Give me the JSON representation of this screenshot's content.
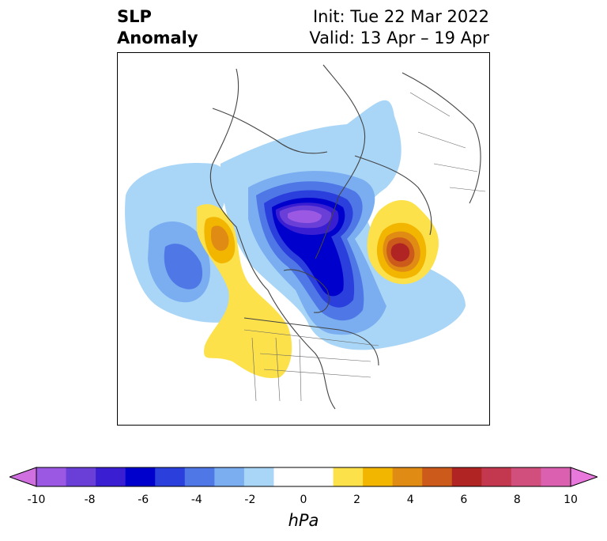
{
  "title": {
    "left_line1": "SLP",
    "left_line2": "Anomaly",
    "init": "Init: Tue 22 Mar 2022",
    "valid": "Valid: 13 Apr – 19 Apr"
  },
  "colorbar": {
    "unit": "hPa",
    "ticks": [
      "-10",
      "-8",
      "-6",
      "-4",
      "-2",
      "0",
      "2",
      "4",
      "6",
      "8",
      "10"
    ],
    "bins": [
      {
        "color": "#9b59e3"
      },
      {
        "color": "#6a3fd8"
      },
      {
        "color": "#3a1fd2"
      },
      {
        "color": "#0000cc"
      },
      {
        "color": "#2a3fdc"
      },
      {
        "color": "#4f78e6"
      },
      {
        "color": "#7aaef0"
      },
      {
        "color": "#a9d6f7"
      },
      {
        "color": "#ffffff"
      },
      {
        "color": "#ffffff"
      },
      {
        "color": "#fde14a"
      },
      {
        "color": "#f2b500"
      },
      {
        "color": "#e08b14"
      },
      {
        "color": "#cc5a1a"
      },
      {
        "color": "#b02424"
      },
      {
        "color": "#c4384f"
      },
      {
        "color": "#d04f7c"
      },
      {
        "color": "#dc60b0"
      }
    ],
    "low_extend_color": "#d070e0",
    "high_extend_color": "#e878dc"
  }
}
